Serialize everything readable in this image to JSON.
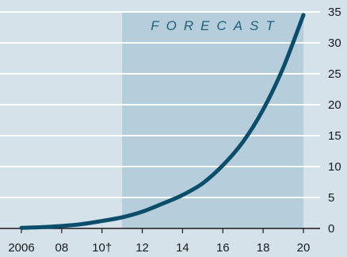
{
  "chart_data": {
    "type": "line",
    "title": "",
    "xlabel": "",
    "ylabel": "",
    "annotation": "FORECAST",
    "forecast_range": [
      2011,
      2020
    ],
    "xlim": [
      2006,
      2020
    ],
    "ylim": [
      0,
      35
    ],
    "grid": true,
    "y_axis_side": "right",
    "x_ticks": [
      {
        "value": 2006,
        "label": "2006"
      },
      {
        "value": 2008,
        "label": "08"
      },
      {
        "value": 2010,
        "label": "10†"
      },
      {
        "value": 2012,
        "label": "12"
      },
      {
        "value": 2014,
        "label": "14"
      },
      {
        "value": 2016,
        "label": "16"
      },
      {
        "value": 2018,
        "label": "18"
      },
      {
        "value": 2020,
        "label": "20"
      }
    ],
    "y_ticks": [
      0,
      5,
      10,
      15,
      20,
      25,
      30,
      35
    ],
    "series": [
      {
        "x": [
          2006,
          2007,
          2008,
          2009,
          2010,
          2011,
          2012,
          2013,
          2014,
          2015,
          2016,
          2017,
          2018,
          2019,
          2020
        ],
        "values": [
          0.1,
          0.2,
          0.4,
          0.7,
          1.2,
          1.8,
          2.7,
          4.0,
          5.4,
          7.3,
          10.2,
          14.0,
          19.2,
          26.0,
          34.5
        ]
      }
    ],
    "colors": {
      "background": "#d5e2ea",
      "forecast_band": "#b6cedb",
      "gridline": "#ffffff",
      "line": "#0b4d6a",
      "annotation": "#1f5f7e",
      "text": "#1a1a1a"
    }
  }
}
